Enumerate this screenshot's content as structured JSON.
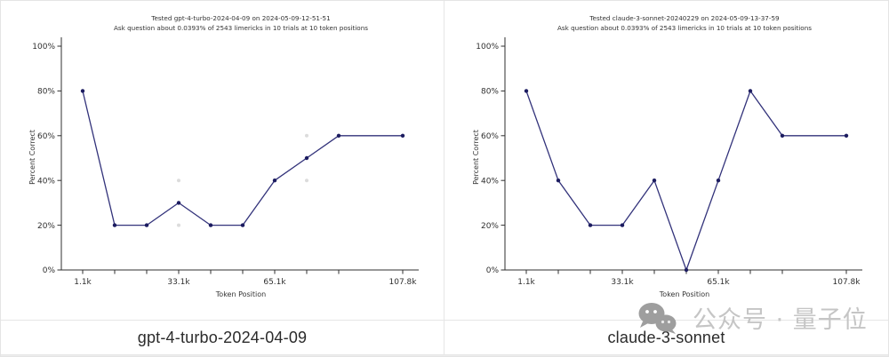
{
  "captions": {
    "left": "gpt-4-turbo-2024-04-09",
    "right": "claude-3-sonnet"
  },
  "watermark": {
    "icon": "wechat-icon",
    "text": "公众号 · 量子位"
  },
  "chart_data": [
    {
      "type": "line",
      "title": "Tested gpt-4-turbo-2024-04-09 on 2024-05-09-12-51-51",
      "subtitle": "Ask question about 0.0393% of 2543 limericks in 10 trials at 10 token positions",
      "xlabel": "Token Position",
      "ylabel": "Percent Correct",
      "ylim": [
        0,
        100
      ],
      "ytick_values": [
        0,
        20,
        40,
        60,
        80,
        100
      ],
      "ytick_labels": [
        "0%",
        "20%",
        "40%",
        "60%",
        "80%",
        "100%"
      ],
      "x_units": [
        0,
        1,
        2,
        3,
        4,
        5,
        6,
        7,
        8,
        10
      ],
      "xticks": [
        {
          "index": 0,
          "label": "1.1k"
        },
        {
          "index": 3,
          "label": "33.1k"
        },
        {
          "index": 6,
          "label": "65.1k"
        },
        {
          "index": 9,
          "label": "107.8k"
        }
      ],
      "values": [
        80,
        20,
        20,
        30,
        20,
        20,
        40,
        50,
        60,
        60
      ],
      "trial_points": [
        {
          "index": 3,
          "value": 20
        },
        {
          "index": 3,
          "value": 40
        },
        {
          "index": 7,
          "value": 40
        },
        {
          "index": 7,
          "value": 60
        }
      ],
      "colors": {
        "line": "#32327a",
        "marker": "#1c1c60",
        "trial": "#dcdcdc"
      },
      "legend": "none",
      "grid": false
    },
    {
      "type": "line",
      "title": "Tested claude-3-sonnet-20240229 on 2024-05-09-13-37-59",
      "subtitle": "Ask question about 0.0393% of 2543 limericks in 10 trials at 10 token positions",
      "xlabel": "Token Position",
      "ylabel": "Percent Correct",
      "ylim": [
        0,
        100
      ],
      "ytick_values": [
        0,
        20,
        40,
        60,
        80,
        100
      ],
      "ytick_labels": [
        "0%",
        "20%",
        "40%",
        "60%",
        "80%",
        "100%"
      ],
      "x_units": [
        0,
        1,
        2,
        3,
        4,
        5,
        6,
        7,
        8,
        10
      ],
      "xticks": [
        {
          "index": 0,
          "label": "1.1k"
        },
        {
          "index": 3,
          "label": "33.1k"
        },
        {
          "index": 6,
          "label": "65.1k"
        },
        {
          "index": 9,
          "label": "107.8k"
        }
      ],
      "values": [
        80,
        40,
        20,
        20,
        40,
        0,
        40,
        80,
        60,
        60
      ],
      "trial_points": [],
      "colors": {
        "line": "#32327a",
        "marker": "#1c1c60",
        "trial": "#dcdcdc"
      },
      "legend": "none",
      "grid": false
    }
  ]
}
